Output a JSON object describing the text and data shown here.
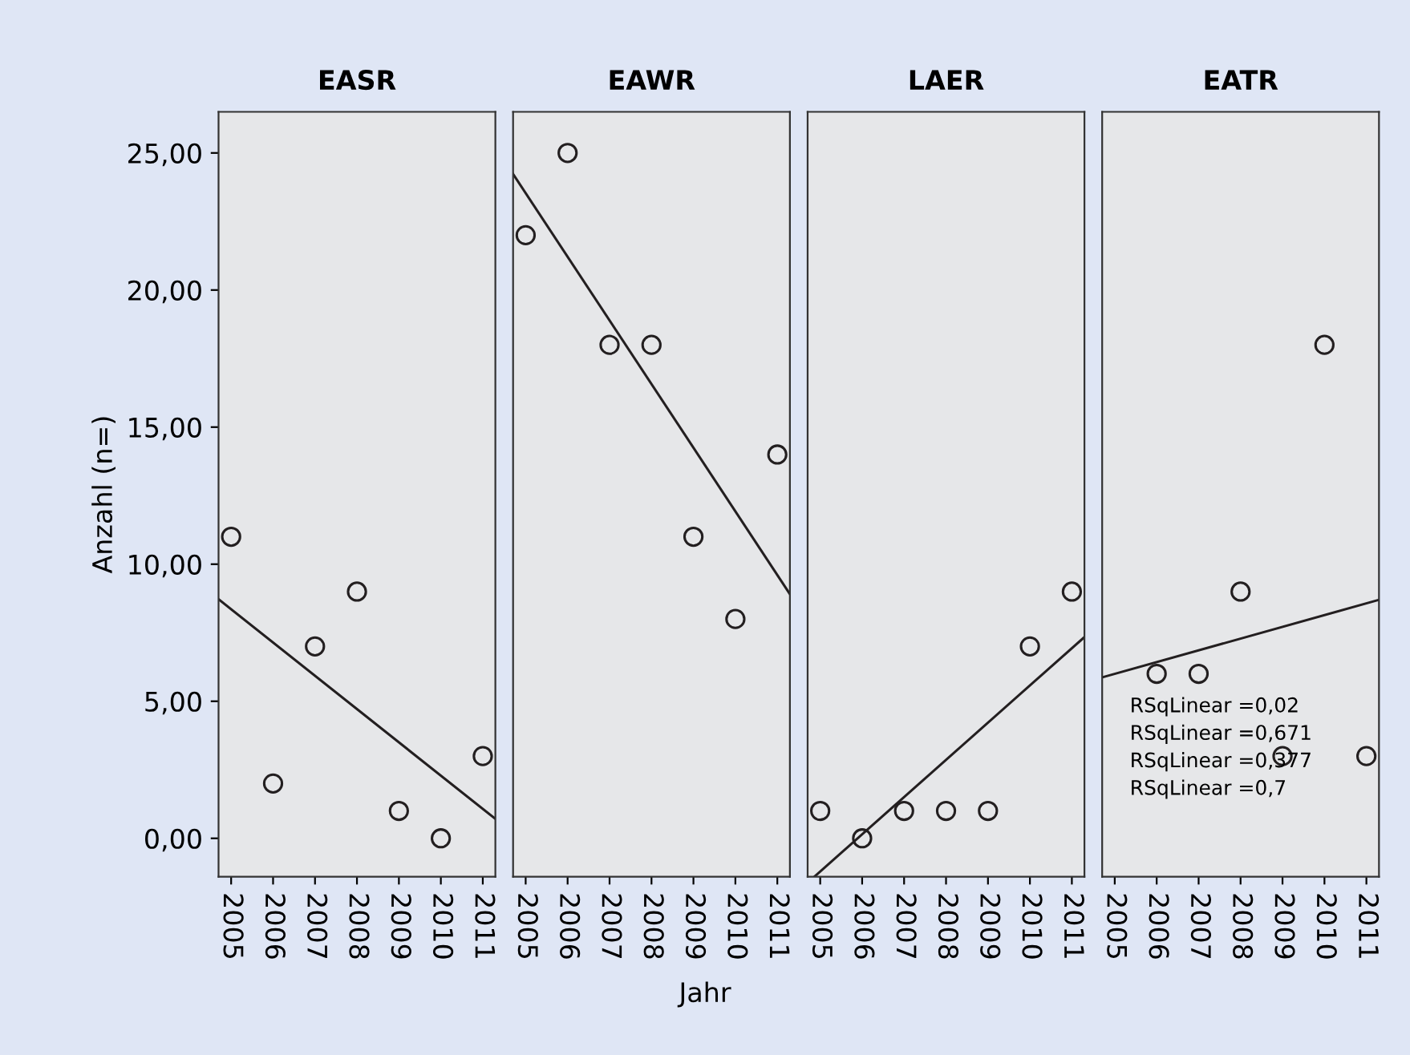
{
  "chart_data": [
    {
      "type": "scatter",
      "title": "EASR",
      "ylabel": "Anzahl (n=)",
      "x": [
        2005,
        2006,
        2007,
        2008,
        2009,
        2010,
        2011
      ],
      "xlim": [
        2004.7,
        2011.3
      ],
      "xticks": [
        2005,
        2006,
        2007,
        2008,
        2009,
        2010,
        2011
      ],
      "ylim": [
        -1.4,
        26.5
      ],
      "yticks": [
        {
          "value": 0,
          "label": "0,00"
        },
        {
          "value": 5,
          "label": "5,00"
        },
        {
          "value": 10,
          "label": "10,00"
        },
        {
          "value": 15,
          "label": "15,00"
        },
        {
          "value": 20,
          "label": "20,00"
        },
        {
          "value": 25,
          "label": "25,00"
        }
      ],
      "grid": false,
      "series": [
        {
          "color": "#231f20",
          "marker": "circle",
          "values": [
            11,
            2,
            7,
            9,
            1,
            0,
            3
          ]
        },
        {
          "type": "line",
          "marker": "none",
          "color": "#231f20",
          "x": [
            2004.7,
            2011.3
          ],
          "values": [
            8.72,
            0.71
          ]
        }
      ]
    },
    {
      "type": "scatter",
      "title": "EAWR",
      "xlabel": "Jahr",
      "x": [
        2005,
        2006,
        2007,
        2008,
        2009,
        2010,
        2011
      ],
      "xlim": [
        2004.7,
        2011.3
      ],
      "xticks": [
        2005,
        2006,
        2007,
        2008,
        2009,
        2010,
        2011
      ],
      "ylim": [
        -1.4,
        26.5
      ],
      "tick_labels": "x",
      "grid": false,
      "series": [
        {
          "color": "#231f20",
          "marker": "circle",
          "values": [
            22,
            25,
            18,
            18,
            11,
            8,
            14
          ]
        },
        {
          "type": "line",
          "marker": "none",
          "color": "#231f20",
          "x": [
            2004.7,
            2011.3
          ],
          "values": [
            24.23,
            8.91
          ]
        }
      ]
    },
    {
      "type": "scatter",
      "title": "LAER",
      "x": [
        2005,
        2006,
        2007,
        2008,
        2009,
        2010,
        2011
      ],
      "xlim": [
        2004.7,
        2011.3
      ],
      "xticks": [
        2005,
        2006,
        2007,
        2008,
        2009,
        2010,
        2011
      ],
      "ylim": [
        -1.4,
        26.5
      ],
      "tick_labels": "x",
      "grid": false,
      "series": [
        {
          "color": "#231f20",
          "marker": "circle",
          "values": [
            1,
            0,
            1,
            1,
            1,
            7,
            9
          ]
        },
        {
          "type": "line",
          "marker": "none",
          "color": "#231f20",
          "x": [
            2004.86,
            2011.3
          ],
          "values": [
            -1.4,
            7.34
          ]
        }
      ]
    },
    {
      "type": "scatter",
      "title": "EATR",
      "x": [
        2006,
        2007,
        2008,
        2009,
        2010,
        2011
      ],
      "xlim": [
        2004.7,
        2011.3
      ],
      "xticks": [
        2005,
        2006,
        2007,
        2008,
        2009,
        2010,
        2011
      ],
      "ylim": [
        -1.4,
        26.5
      ],
      "tick_labels": "x",
      "grid": false,
      "annotations": [
        "RSqLinear =0,02",
        "RSqLinear =0,671",
        "RSqLinear =0,377",
        "RSqLinear =0,7"
      ],
      "series": [
        {
          "color": "#231f20",
          "marker": "circle",
          "values": [
            6,
            6,
            9,
            3,
            18,
            3
          ]
        },
        {
          "type": "line",
          "marker": "none",
          "color": "#231f20",
          "x": [
            2004.7,
            2011.3
          ],
          "values": [
            5.87,
            8.7
          ]
        }
      ]
    }
  ]
}
